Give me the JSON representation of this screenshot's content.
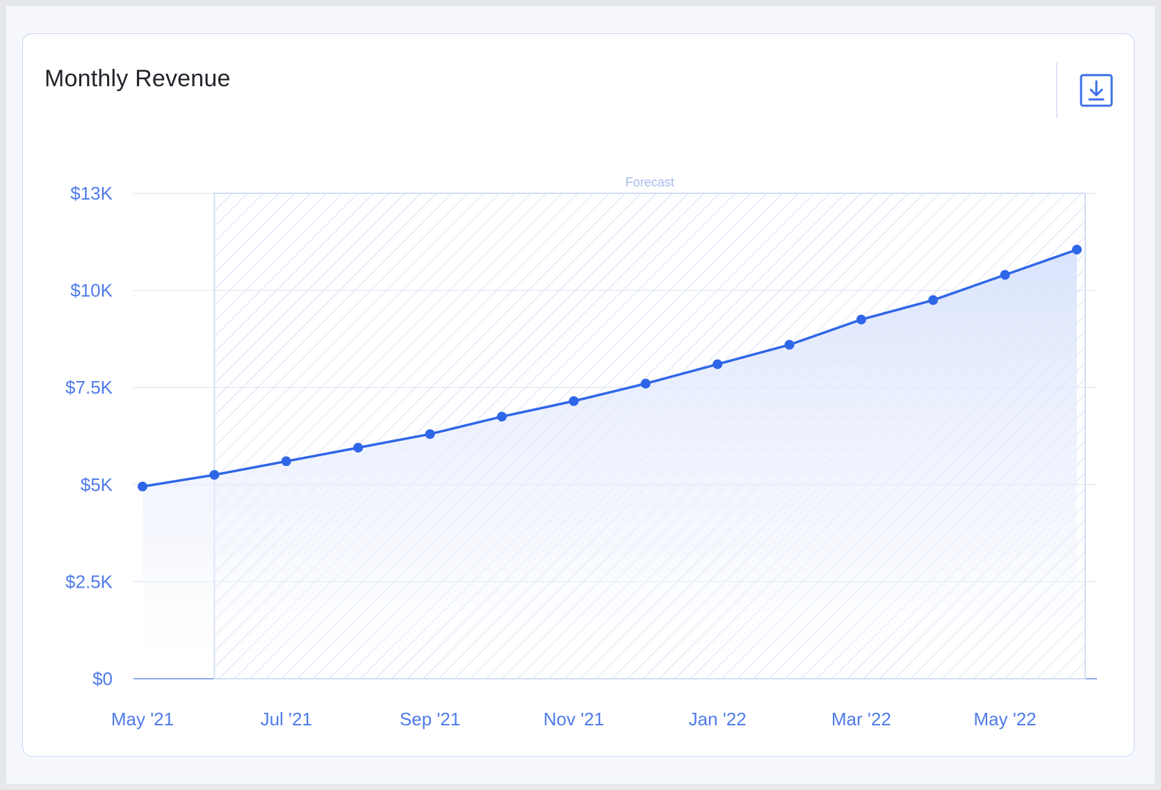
{
  "card": {
    "title": "Monthly Revenue",
    "download_icon": "download-icon"
  },
  "colors": {
    "line": "#2f66e8",
    "area": "#e3eafc",
    "grid": "#e6ebf7",
    "tick_text": "#4f7bea",
    "forecast_hatch": "#d7dff6"
  },
  "chart_data": {
    "type": "line",
    "title": "Monthly Revenue",
    "xlabel": "",
    "ylabel": "",
    "x": [
      "May '21",
      "Jun '21",
      "Jul '21",
      "Aug '21",
      "Sep '21",
      "Oct '21",
      "Nov '21",
      "Dec '21",
      "Jan '22",
      "Feb '22",
      "Mar '22",
      "Apr '22",
      "May '22",
      "Jun '22"
    ],
    "x_tick_labels": [
      "May '21",
      "Jul '21",
      "Sep '21",
      "Nov '21",
      "Jan '22",
      "Mar '22",
      "May '22"
    ],
    "series": [
      {
        "values": [
          4950,
          5250,
          5600,
          5950,
          6300,
          6750,
          7150,
          7600,
          8100,
          8600,
          9250,
          9750,
          10400,
          11050
        ]
      }
    ],
    "ylim": [
      0,
      12500
    ],
    "y_ticks": [
      0,
      2500,
      5000,
      7500,
      10000,
      12500
    ],
    "y_tick_labels": [
      "$0",
      "$2.5K",
      "$5K",
      "$7.5K",
      "$10K",
      "$13K"
    ],
    "forecast_band": {
      "label": "Forecast",
      "start": "Jun '21",
      "end": "Jun '22"
    },
    "grid": true,
    "area_fill": true,
    "legend": "none"
  }
}
